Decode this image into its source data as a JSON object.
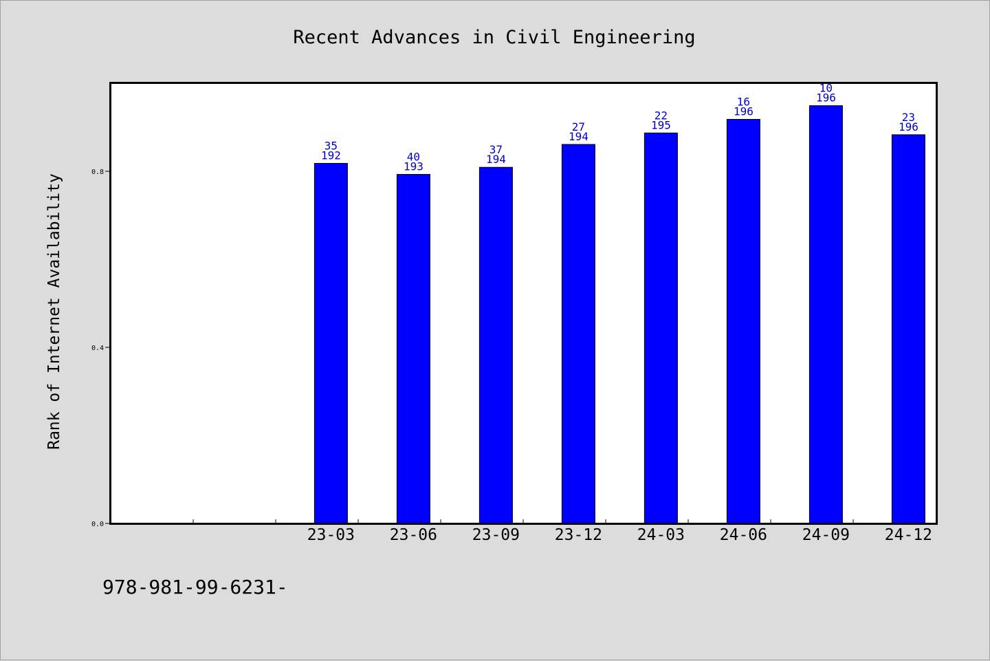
{
  "chart_data": {
    "type": "bar",
    "title": "Recent Advances in Civil Engineering",
    "xlabel": "",
    "ylabel": "Rank of Internet Availability",
    "categories": [
      "",
      "",
      "23-03",
      "23-06",
      "23-09",
      "23-12",
      "24-03",
      "24-06",
      "24-09",
      "24-12"
    ],
    "values": [
      null,
      null,
      0.818,
      0.793,
      0.809,
      0.861,
      0.887,
      0.918,
      0.949,
      0.883
    ],
    "data_labels": [
      null,
      null,
      [
        "35",
        "192"
      ],
      [
        "40",
        "193"
      ],
      [
        "37",
        "194"
      ],
      [
        "27",
        "194"
      ],
      [
        "22",
        "195"
      ],
      [
        "16",
        "196"
      ],
      [
        "10",
        "196"
      ],
      [
        "23",
        "196"
      ]
    ],
    "ylim": [
      0,
      1.0
    ],
    "yticks": [
      0.0,
      0.4,
      0.8
    ],
    "ytick_labels": [
      "0.0",
      "0.4",
      "0.8"
    ],
    "bar_color": "#0000ff",
    "label_color": "#0000cc",
    "grid": false,
    "legend": "none"
  },
  "footer": {
    "isbn": "978-981-99-6231-"
  },
  "colors": {
    "background": "#dcdcdc",
    "plot_area": "#ffffff"
  }
}
